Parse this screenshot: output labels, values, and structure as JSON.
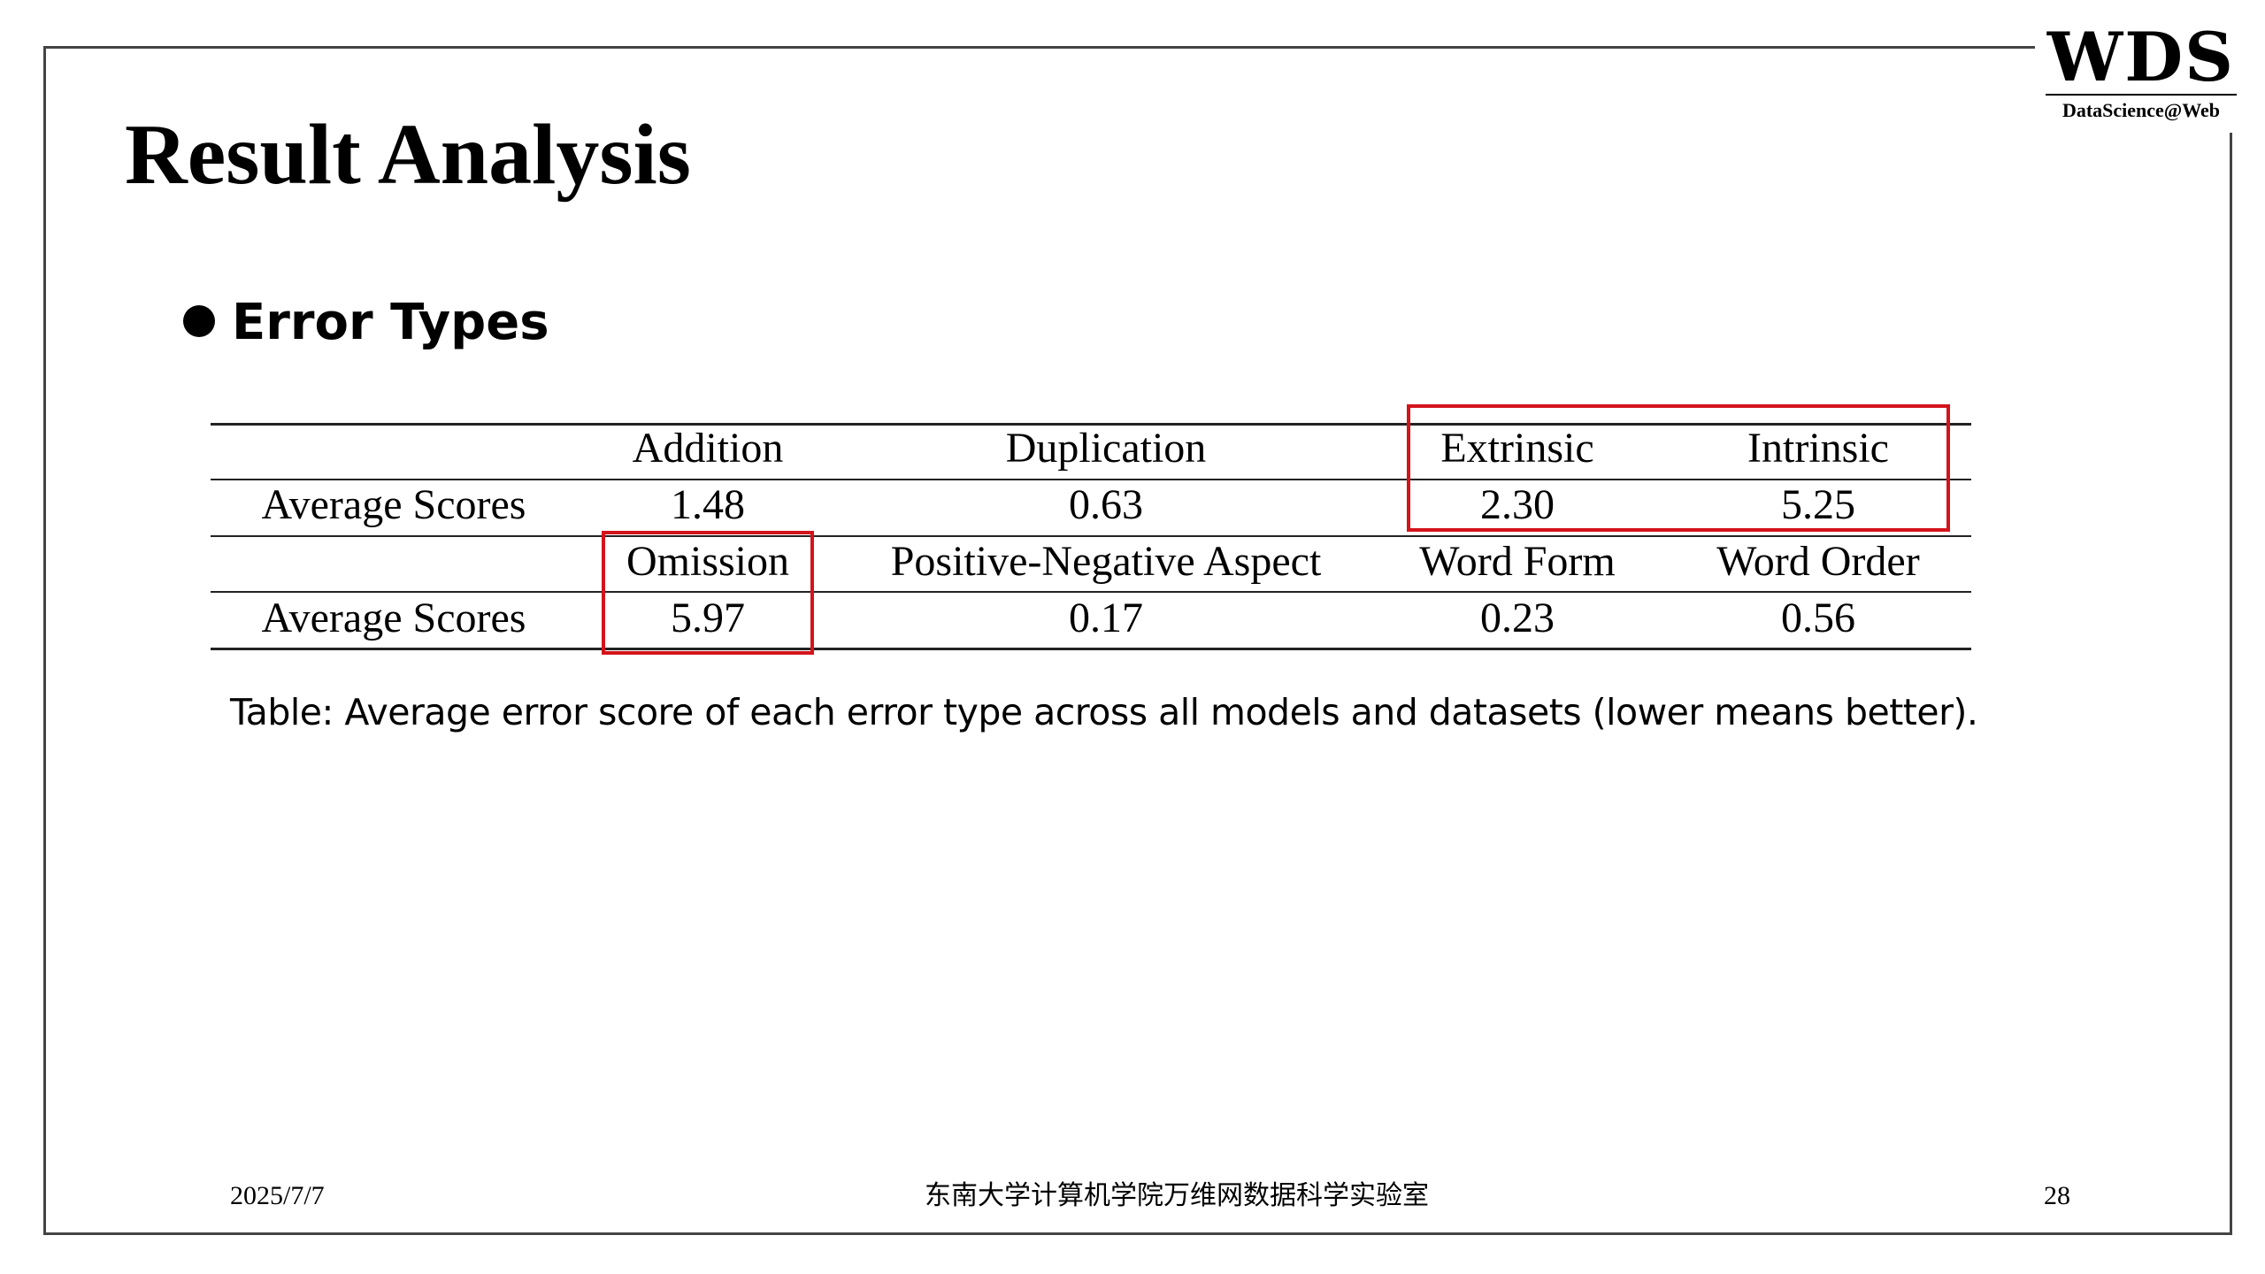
{
  "logo": {
    "main": "WDS",
    "sub": "DataScience@Web"
  },
  "slide": {
    "title": "Result Analysis",
    "bullet": "Error Types"
  },
  "table": {
    "rows": [
      [
        "",
        "Addition",
        "Duplication",
        "Extrinsic",
        "Intrinsic"
      ],
      [
        "Average Scores",
        "1.48",
        "0.63",
        "2.30",
        "5.25"
      ],
      [
        "",
        "Omission",
        "Positive-Negative Aspect",
        "Word Form",
        "Word Order"
      ],
      [
        "Average Scores",
        "5.97",
        "0.17",
        "0.23",
        "0.56"
      ]
    ],
    "highlight_color": "#d4141c",
    "caption": "Table: Average error score of each error type across all models and datasets (lower means better)."
  },
  "footer": {
    "date": "2025/7/7",
    "org": "东南大学计算机学院万维网数据科学实验室",
    "page": "28"
  }
}
